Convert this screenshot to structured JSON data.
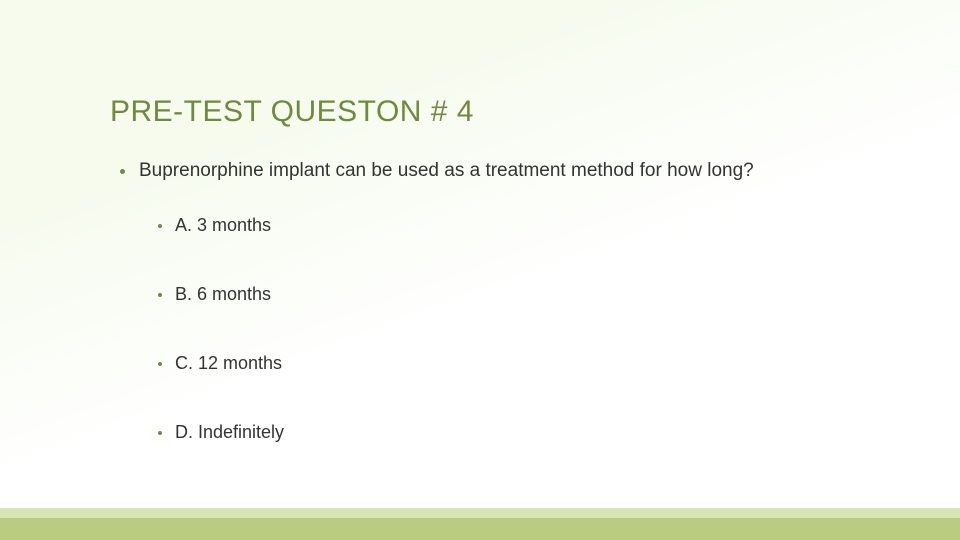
{
  "colors": {
    "title_color": "#6f8a3c",
    "text_color": "#333333",
    "bullet_color": "#6f8a3c",
    "bg_gradient_start": "#f6fbee",
    "bg_gradient_end": "#ffffff",
    "footer_main": "#b9cc7f",
    "footer_light": "#d7e4b3"
  },
  "typography": {
    "title_fontsize": 30,
    "question_fontsize": 19,
    "option_fontsize": 18,
    "font_family": "Arial"
  },
  "title": "PRE-TEST QUESTON # 4",
  "question": "Buprenorphine implant can be used as a treatment method for how long?",
  "options": [
    {
      "label": "A. 3 months"
    },
    {
      "label": "B. 6 months"
    },
    {
      "label": "C. 12 months"
    },
    {
      "label": "D. Indefinitely"
    }
  ]
}
